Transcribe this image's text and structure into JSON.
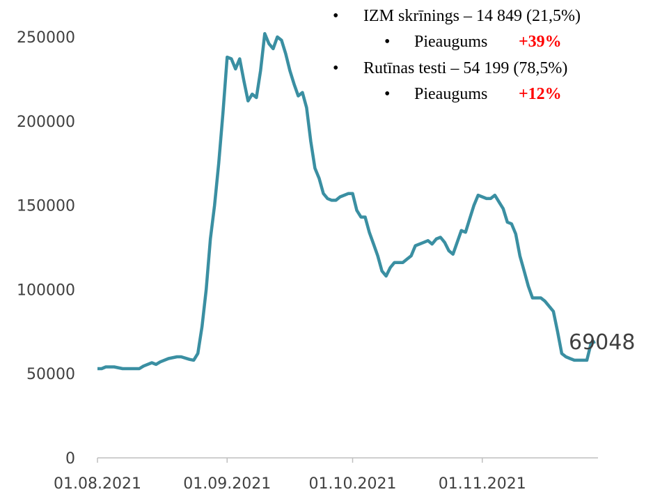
{
  "chart_data": {
    "type": "line",
    "x": [
      "01.08.2021",
      "02.08.2021",
      "03.08.2021",
      "05.08.2021",
      "07.08.2021",
      "11.08.2021",
      "12.08.2021",
      "14.08.2021",
      "15.08.2021",
      "16.08.2021",
      "18.08.2021",
      "20.08.2021",
      "21.08.2021",
      "23.08.2021",
      "24.08.2021",
      "25.08.2021",
      "26.08.2021",
      "27.08.2021",
      "28.08.2021",
      "29.08.2021",
      "30.08.2021",
      "31.08.2021",
      "01.09.2021",
      "02.09.2021",
      "03.09.2021",
      "04.09.2021",
      "05.09.2021",
      "06.09.2021",
      "07.09.2021",
      "08.09.2021",
      "09.09.2021",
      "10.09.2021",
      "11.09.2021",
      "12.09.2021",
      "13.09.2021",
      "14.09.2021",
      "15.09.2021",
      "16.09.2021",
      "17.09.2021",
      "18.09.2021",
      "19.09.2021",
      "20.09.2021",
      "21.09.2021",
      "22.09.2021",
      "23.09.2021",
      "24.09.2021",
      "25.09.2021",
      "26.09.2021",
      "27.09.2021",
      "28.09.2021",
      "29.09.2021",
      "30.09.2021",
      "01.10.2021",
      "02.10.2021",
      "03.10.2021",
      "04.10.2021",
      "05.10.2021",
      "06.10.2021",
      "07.10.2021",
      "08.10.2021",
      "09.10.2021",
      "10.10.2021",
      "11.10.2021",
      "13.10.2021",
      "14.10.2021",
      "15.10.2021",
      "16.10.2021",
      "18.10.2021",
      "19.10.2021",
      "20.10.2021",
      "21.10.2021",
      "22.10.2021",
      "23.10.2021",
      "24.10.2021",
      "25.10.2021",
      "26.10.2021",
      "27.10.2021",
      "28.10.2021",
      "29.10.2021",
      "30.10.2021",
      "31.10.2021",
      "01.11.2021",
      "02.11.2021",
      "03.11.2021",
      "04.11.2021",
      "05.11.2021",
      "06.11.2021",
      "07.11.2021",
      "08.11.2021",
      "09.11.2021",
      "10.11.2021",
      "11.11.2021",
      "12.11.2021",
      "13.11.2021",
      "14.11.2021",
      "15.11.2021",
      "16.11.2021",
      "17.11.2021",
      "18.11.2021",
      "19.11.2021",
      "20.11.2021",
      "21.11.2021",
      "22.11.2021",
      "23.11.2021",
      "25.11.2021",
      "26.11.2021",
      "27.11.2021",
      "28.11.2021"
    ],
    "values": [
      53000,
      53000,
      54000,
      54000,
      53000,
      53000,
      54500,
      56500,
      55500,
      57000,
      59000,
      60000,
      60000,
      58500,
      58000,
      62000,
      78000,
      100000,
      130000,
      150000,
      175000,
      205000,
      238000,
      237000,
      231000,
      237000,
      224000,
      212000,
      216000,
      214000,
      230000,
      252000,
      246000,
      243000,
      250000,
      248000,
      240000,
      230000,
      222000,
      215000,
      217000,
      208000,
      188000,
      172000,
      166000,
      157000,
      154000,
      153000,
      153000,
      155000,
      156000,
      157000,
      157000,
      147000,
      143000,
      143000,
      134000,
      127000,
      120000,
      111000,
      108000,
      113000,
      116000,
      116000,
      118000,
      120000,
      126000,
      128000,
      129000,
      127000,
      130000,
      131000,
      128000,
      123000,
      121000,
      128000,
      135000,
      134000,
      142000,
      150000,
      156000,
      155000,
      154000,
      154000,
      156000,
      152000,
      148000,
      140000,
      139000,
      133000,
      120000,
      111000,
      102000,
      95000,
      95000,
      95000,
      93000,
      90000,
      87000,
      75000,
      62000,
      60000,
      59000,
      58000,
      58000,
      58000,
      68000,
      69048
    ],
    "color": "#3a8fa2",
    "xlim": [
      "01.08.2021",
      "28.11.2021"
    ],
    "xticks": [
      "01.08.2021",
      "01.09.2021",
      "01.10.2021",
      "01.11.2021"
    ],
    "ylim": [
      0,
      250000
    ],
    "yticks": [
      0,
      50000,
      100000,
      150000,
      200000,
      250000
    ],
    "grid": false,
    "notes": [
      {
        "label": "IZM skrīnings  – 14 849 (21,5%)",
        "sub_label": "Pieaugums",
        "sub_value": "+39%"
      },
      {
        "label": "Rutīnas testi – 54 199 (78,5%)",
        "sub_label": "Pieaugums",
        "sub_value": "+12%"
      }
    ]
  }
}
